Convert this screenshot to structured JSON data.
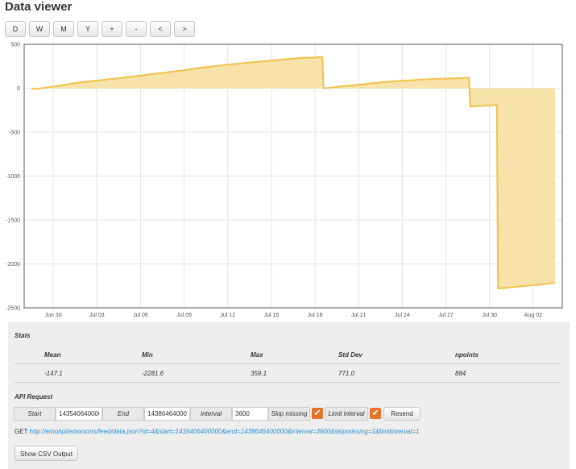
{
  "title": "Data viewer",
  "toolbar": {
    "buttons": [
      {
        "label": "D",
        "name": "day-button"
      },
      {
        "label": "W",
        "name": "week-button"
      },
      {
        "label": "M",
        "name": "month-button"
      },
      {
        "label": "Y",
        "name": "year-button"
      },
      {
        "label": "+",
        "name": "zoom-in-button"
      },
      {
        "label": "-",
        "name": "zoom-out-button"
      },
      {
        "label": "<",
        "name": "pan-left-button"
      },
      {
        "label": ">",
        "name": "pan-right-button"
      }
    ]
  },
  "chart_data": {
    "type": "area",
    "ylim": [
      -2500,
      500
    ],
    "yticks": [
      500,
      0,
      -500,
      -1000,
      -1500,
      -2000,
      -2500
    ],
    "xlim": [
      "2015-06-28",
      "2015-08-04"
    ],
    "xticks": [
      "Jun 30",
      "Jul 03",
      "Jul 06",
      "Jul 09",
      "Jul 12",
      "Jul 15",
      "Jul 18",
      "Jul 21",
      "Jul 24",
      "Jul 27",
      "Jul 30",
      "Aug 02"
    ],
    "xtick_dates": [
      "2015-06-30",
      "2015-07-03",
      "2015-07-06",
      "2015-07-09",
      "2015-07-12",
      "2015-07-15",
      "2015-07-18",
      "2015-07-21",
      "2015-07-24",
      "2015-07-27",
      "2015-07-30",
      "2015-08-02"
    ],
    "series": [
      {
        "color": "#f0c14b",
        "fill": "#f7e0a4",
        "points": [
          [
            "2015-06-28T12:00",
            -8
          ],
          [
            "2015-06-29T06:00",
            0
          ],
          [
            "2015-06-30T00:00",
            20
          ],
          [
            "2015-07-01T00:00",
            45
          ],
          [
            "2015-07-02T00:00",
            70
          ],
          [
            "2015-07-03T00:00",
            88
          ],
          [
            "2015-07-04T00:00",
            105
          ],
          [
            "2015-07-05T00:00",
            125
          ],
          [
            "2015-07-06T00:00",
            145
          ],
          [
            "2015-07-07T00:00",
            165
          ],
          [
            "2015-07-08T00:00",
            185
          ],
          [
            "2015-07-09T00:00",
            205
          ],
          [
            "2015-07-10T00:00",
            230
          ],
          [
            "2015-07-11T00:00",
            250
          ],
          [
            "2015-07-12T00:00",
            270
          ],
          [
            "2015-07-13T00:00",
            285
          ],
          [
            "2015-07-14T00:00",
            300
          ],
          [
            "2015-07-15T00:00",
            315
          ],
          [
            "2015-07-16T00:00",
            330
          ],
          [
            "2015-07-17T00:00",
            345
          ],
          [
            "2015-07-18T00:00",
            350
          ],
          [
            "2015-07-18T12:00",
            359
          ],
          [
            "2015-07-18T14:00",
            0
          ],
          [
            "2015-07-19T00:00",
            5
          ],
          [
            "2015-07-20T00:00",
            25
          ],
          [
            "2015-07-21T00:00",
            40
          ],
          [
            "2015-07-22T00:00",
            60
          ],
          [
            "2015-07-23T00:00",
            75
          ],
          [
            "2015-07-24T00:00",
            85
          ],
          [
            "2015-07-25T00:00",
            95
          ],
          [
            "2015-07-26T00:00",
            105
          ],
          [
            "2015-07-27T00:00",
            110
          ],
          [
            "2015-07-28T00:00",
            115
          ],
          [
            "2015-07-28T14:00",
            122
          ],
          [
            "2015-07-28T16:00",
            -210
          ],
          [
            "2015-07-29T12:00",
            -200
          ],
          [
            "2015-07-30T12:00",
            -190
          ],
          [
            "2015-07-30T14:00",
            -2281.6
          ],
          [
            "2015-07-31T12:00",
            -2265
          ],
          [
            "2015-08-01T12:00",
            -2250
          ],
          [
            "2015-08-02T12:00",
            -2235
          ],
          [
            "2015-08-03T12:00",
            -2215
          ]
        ]
      }
    ]
  },
  "stats": {
    "section_title": "Stats",
    "headers": [
      "Mean",
      "Min",
      "Max",
      "Std Dev",
      "npoints"
    ],
    "values": [
      "-147.1",
      "-2281.6",
      "359.1",
      "771.0",
      "884"
    ]
  },
  "api": {
    "section_title": "API Request",
    "start_label": "Start",
    "start_value": "1435406400000",
    "end_label": "End",
    "end_value": "1438646400000",
    "interval_label": "Interval",
    "interval_value": "3600",
    "skip_missing_label": "Skip missing",
    "skip_missing_checked": true,
    "limit_interval_label": "Limit interval",
    "limit_interval_checked": true,
    "resend_label": "Resend",
    "check_glyph": "✔",
    "get_prefix": "GET",
    "get_url": "http://emonpi/emoncms/feed/data.json?id=4&start=1435406400000&end=1438646400000&interval=3600&skipmissing=1&limitinterval=1"
  },
  "csv_button_label": "Show CSV Output"
}
